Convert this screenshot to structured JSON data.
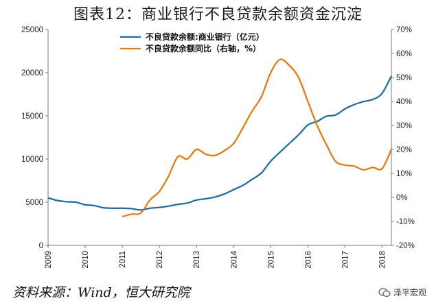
{
  "title": "图表12：商业银行不良贷款余额资金沉淀",
  "source": "资料来源：Wind，恒大研究院",
  "watermark": "泽平宏观",
  "chart_data": {
    "type": "line",
    "title": "图表12：商业银行不良贷款余额资金沉淀",
    "x_ticks": [
      "2009",
      "2010",
      "2011",
      "2012",
      "2013",
      "2014",
      "2015",
      "2016",
      "2017",
      "2018"
    ],
    "x_range": [
      2009.0,
      2018.25
    ],
    "y_left": {
      "range": [
        0,
        25000
      ],
      "ticks": [
        "0",
        "5000",
        "10000",
        "15000",
        "20000",
        "25000"
      ]
    },
    "y_right": {
      "range": [
        -20,
        70
      ],
      "ticks": [
        "-20%",
        "-10%",
        "0%",
        "10%",
        "20%",
        "30%",
        "40%",
        "50%",
        "60%",
        "70%"
      ]
    },
    "grid": false,
    "legend_position": "top",
    "series": [
      {
        "name": "不良贷款余额:商业银行（亿元）",
        "axis": "left",
        "color": "#1f6fa6",
        "points": [
          [
            2009.0,
            5500
          ],
          [
            2009.25,
            5200
          ],
          [
            2009.5,
            5050
          ],
          [
            2009.75,
            5000
          ],
          [
            2010.0,
            4700
          ],
          [
            2010.25,
            4600
          ],
          [
            2010.5,
            4350
          ],
          [
            2010.75,
            4300
          ],
          [
            2011.0,
            4300
          ],
          [
            2011.25,
            4250
          ],
          [
            2011.5,
            4100
          ],
          [
            2011.75,
            4300
          ],
          [
            2012.0,
            4400
          ],
          [
            2012.25,
            4550
          ],
          [
            2012.5,
            4750
          ],
          [
            2012.75,
            4900
          ],
          [
            2013.0,
            5250
          ],
          [
            2013.25,
            5400
          ],
          [
            2013.5,
            5600
          ],
          [
            2013.75,
            5950
          ],
          [
            2014.0,
            6450
          ],
          [
            2014.25,
            6950
          ],
          [
            2014.5,
            7650
          ],
          [
            2014.75,
            8400
          ],
          [
            2015.0,
            9750
          ],
          [
            2015.25,
            10800
          ],
          [
            2015.5,
            11800
          ],
          [
            2015.75,
            12800
          ],
          [
            2016.0,
            13950
          ],
          [
            2016.25,
            14350
          ],
          [
            2016.5,
            14950
          ],
          [
            2016.75,
            15100
          ],
          [
            2017.0,
            15800
          ],
          [
            2017.25,
            16300
          ],
          [
            2017.5,
            16650
          ],
          [
            2017.75,
            16900
          ],
          [
            2018.0,
            17600
          ],
          [
            2018.25,
            19600
          ]
        ]
      },
      {
        "name": "不良贷款余额同比（右轴，%）",
        "axis": "right",
        "color": "#e07b14",
        "points": [
          [
            2011.0,
            -8.0
          ],
          [
            2011.25,
            -7.0
          ],
          [
            2011.5,
            -6.5
          ],
          [
            2011.75,
            -1.0
          ],
          [
            2012.0,
            2.5
          ],
          [
            2012.25,
            9.0
          ],
          [
            2012.5,
            17.0
          ],
          [
            2012.75,
            16.0
          ],
          [
            2013.0,
            20.0
          ],
          [
            2013.25,
            18.0
          ],
          [
            2013.5,
            17.5
          ],
          [
            2013.75,
            19.5
          ],
          [
            2014.0,
            22.5
          ],
          [
            2014.25,
            29.0
          ],
          [
            2014.5,
            36.0
          ],
          [
            2014.75,
            42.0
          ],
          [
            2015.0,
            52.0
          ],
          [
            2015.25,
            57.5
          ],
          [
            2015.5,
            55.0
          ],
          [
            2015.75,
            50.0
          ],
          [
            2016.0,
            40.0
          ],
          [
            2016.25,
            30.0
          ],
          [
            2016.5,
            22.0
          ],
          [
            2016.75,
            15.0
          ],
          [
            2017.0,
            13.5
          ],
          [
            2017.25,
            13.0
          ],
          [
            2017.5,
            11.5
          ],
          [
            2017.75,
            12.5
          ],
          [
            2018.0,
            12.0
          ],
          [
            2018.25,
            20.0
          ]
        ]
      }
    ]
  }
}
